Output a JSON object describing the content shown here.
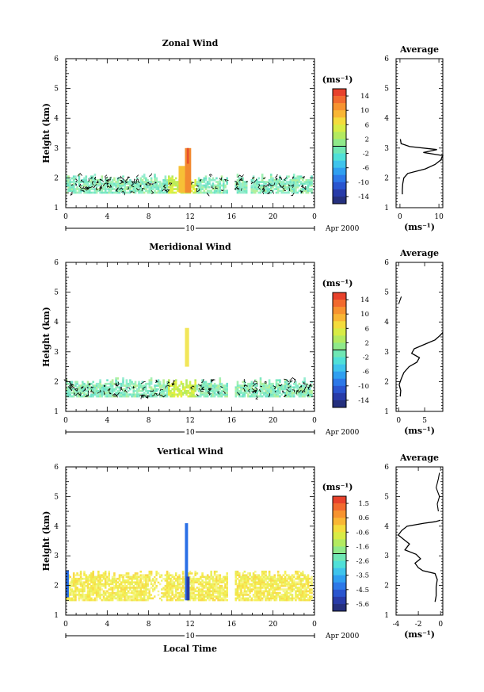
{
  "chart_data": [
    {
      "type": "heatmap",
      "title": "Zonal Wind",
      "xlabel": "",
      "ylabel": "Height (km)",
      "xlim": [
        0,
        24
      ],
      "ylim": [
        1,
        6
      ],
      "x_ticks": [
        "0",
        "4",
        "8",
        "12",
        "16",
        "20",
        "0"
      ],
      "y_ticks": [
        "1",
        "2",
        "3",
        "4",
        "5",
        "6"
      ],
      "date_bar": {
        "day": "10",
        "label": "Apr 2000"
      },
      "colorbar": {
        "unit": "(ms⁻¹)",
        "ticks": [
          "14",
          "10",
          "6",
          "2",
          "-2",
          "-6",
          "-10",
          "-14"
        ],
        "min": -16,
        "max": 16
      },
      "data_gaps_hours": [
        [
          15.5,
          16.3
        ],
        [
          17.5,
          17.7
        ],
        [
          23.8,
          24
        ]
      ],
      "data_height_range_km": [
        1.5,
        2.1
      ],
      "features": [
        {
          "name": "strong positive (orange/red) column",
          "x": [
            11.5,
            12.1
          ],
          "y": [
            1.5,
            3.0
          ],
          "value_max": 12
        },
        {
          "name": "yellow-green patch",
          "x": [
            9.8,
            12.5
          ],
          "y": [
            1.5,
            2.4
          ],
          "value": 3
        }
      ],
      "average_profile": {
        "title": "Average",
        "xlabel": "(ms⁻¹)",
        "xlim": [
          -1,
          11
        ],
        "x_ticks": [
          "0",
          "10"
        ],
        "y_ticks": [
          "1",
          "2",
          "3",
          "4",
          "5",
          "6"
        ],
        "points": [
          [
            0.6,
            1.45
          ],
          [
            0.6,
            1.6
          ],
          [
            0.7,
            1.8
          ],
          [
            1.0,
            2.0
          ],
          [
            2.0,
            2.15
          ],
          [
            6.5,
            2.3
          ],
          [
            9.0,
            2.45
          ],
          [
            10.5,
            2.6
          ],
          [
            11.0,
            2.75
          ],
          [
            6.0,
            2.85
          ],
          [
            9.5,
            2.95
          ],
          [
            2.5,
            3.05
          ],
          [
            0.3,
            3.15
          ],
          [
            0.1,
            3.3
          ]
        ]
      }
    },
    {
      "type": "heatmap",
      "title": "Meridional Wind",
      "xlabel": "",
      "ylabel": "Height (km)",
      "xlim": [
        0,
        24
      ],
      "ylim": [
        1,
        6
      ],
      "x_ticks": [
        "0",
        "4",
        "8",
        "12",
        "16",
        "20",
        "0"
      ],
      "y_ticks": [
        "1",
        "2",
        "3",
        "4",
        "5",
        "6"
      ],
      "date_bar": {
        "day": "10",
        "label": "Apr 2000"
      },
      "colorbar": {
        "unit": "(ms⁻¹)",
        "ticks": [
          "14",
          "10",
          "6",
          "2",
          "-2",
          "-6",
          "-10",
          "-14"
        ],
        "min": -16,
        "max": 16
      },
      "data_gaps_hours": [
        [
          15.5,
          16.3
        ],
        [
          23.8,
          24
        ]
      ],
      "data_height_range_km": [
        1.5,
        2.1
      ],
      "features": [
        {
          "name": "isolated column",
          "x": [
            11.5,
            11.9
          ],
          "y": [
            2.5,
            3.8
          ],
          "value": 4
        }
      ],
      "average_profile": {
        "title": "Average",
        "xlabel": "(ms⁻¹)",
        "xlim": [
          -0.5,
          8.5
        ],
        "x_ticks": [
          "0",
          "5"
        ],
        "y_ticks": [
          "1",
          "2",
          "3",
          "4",
          "5",
          "6"
        ],
        "points": [
          [
            0.3,
            1.5
          ],
          [
            0.4,
            1.7
          ],
          [
            0.1,
            1.9
          ],
          [
            0.5,
            2.1
          ],
          [
            1.0,
            2.3
          ],
          [
            2.0,
            2.5
          ],
          [
            3.5,
            2.65
          ],
          [
            4.0,
            2.8
          ],
          [
            2.5,
            2.95
          ],
          [
            3.0,
            3.1
          ],
          [
            5.0,
            3.25
          ],
          [
            7.0,
            3.4
          ],
          [
            8.0,
            3.55
          ],
          [
            8.5,
            3.65
          ]
        ],
        "points_upper": [
          [
            0.0,
            4.6
          ],
          [
            0.3,
            4.75
          ],
          [
            0.5,
            4.85
          ]
        ]
      }
    },
    {
      "type": "heatmap",
      "title": "Vertical Wind",
      "xlabel": "Local Time",
      "ylabel": "Height (km)",
      "xlim": [
        0,
        24
      ],
      "ylim": [
        1,
        6
      ],
      "x_ticks": [
        "0",
        "4",
        "8",
        "12",
        "16",
        "20",
        "0"
      ],
      "y_ticks": [
        "1",
        "2",
        "3",
        "4",
        "5",
        "6"
      ],
      "date_bar": {
        "day": "10",
        "label": "Apr 2000"
      },
      "colorbar": {
        "unit": "(ms⁻¹)",
        "ticks": [
          "1.5",
          "0.6",
          "-0.6",
          "-1.6",
          "-2.6",
          "-3.5",
          "-4.5",
          "-5.6"
        ],
        "min": -6,
        "max": 2
      },
      "data_gaps_hours": [
        [
          15.5,
          16.3
        ],
        [
          23.8,
          24
        ]
      ],
      "data_height_range_km": [
        1.5,
        2.5
      ],
      "features": [
        {
          "name": "strong negative column",
          "x": [
            11.5,
            11.8
          ],
          "y": [
            1.5,
            4.1
          ],
          "value": -4.5
        },
        {
          "name": "blue strip at start",
          "x": [
            0,
            0.3
          ],
          "y": [
            1.6,
            2.5
          ],
          "value": -4
        }
      ],
      "average_profile": {
        "title": "Average",
        "xlabel": "(ms⁻¹)",
        "xlim": [
          -4,
          0.2
        ],
        "x_ticks": [
          "-4",
          "-2",
          "0"
        ],
        "y_ticks": [
          "1",
          "2",
          "3",
          "4",
          "5",
          "6"
        ],
        "points": [
          [
            -0.5,
            1.45
          ],
          [
            -0.4,
            1.65
          ],
          [
            -0.4,
            1.95
          ],
          [
            -0.3,
            2.2
          ],
          [
            -0.5,
            2.4
          ],
          [
            -1.6,
            2.5
          ],
          [
            -2.0,
            2.6
          ],
          [
            -2.3,
            2.75
          ],
          [
            -1.8,
            2.9
          ],
          [
            -2.2,
            3.05
          ],
          [
            -3.2,
            3.2
          ],
          [
            -2.8,
            3.4
          ],
          [
            -3.3,
            3.55
          ],
          [
            -3.8,
            3.7
          ],
          [
            -3.5,
            3.85
          ],
          [
            -3.0,
            4.0
          ],
          [
            -1.5,
            4.1
          ],
          [
            -0.5,
            4.15
          ],
          [
            0.0,
            4.2
          ]
        ],
        "points_upper": [
          [
            -0.2,
            4.5
          ],
          [
            -0.3,
            4.75
          ],
          [
            -0.1,
            5.0
          ],
          [
            -0.4,
            5.3
          ],
          [
            -0.2,
            5.6
          ],
          [
            -0.1,
            5.8
          ]
        ]
      }
    }
  ]
}
